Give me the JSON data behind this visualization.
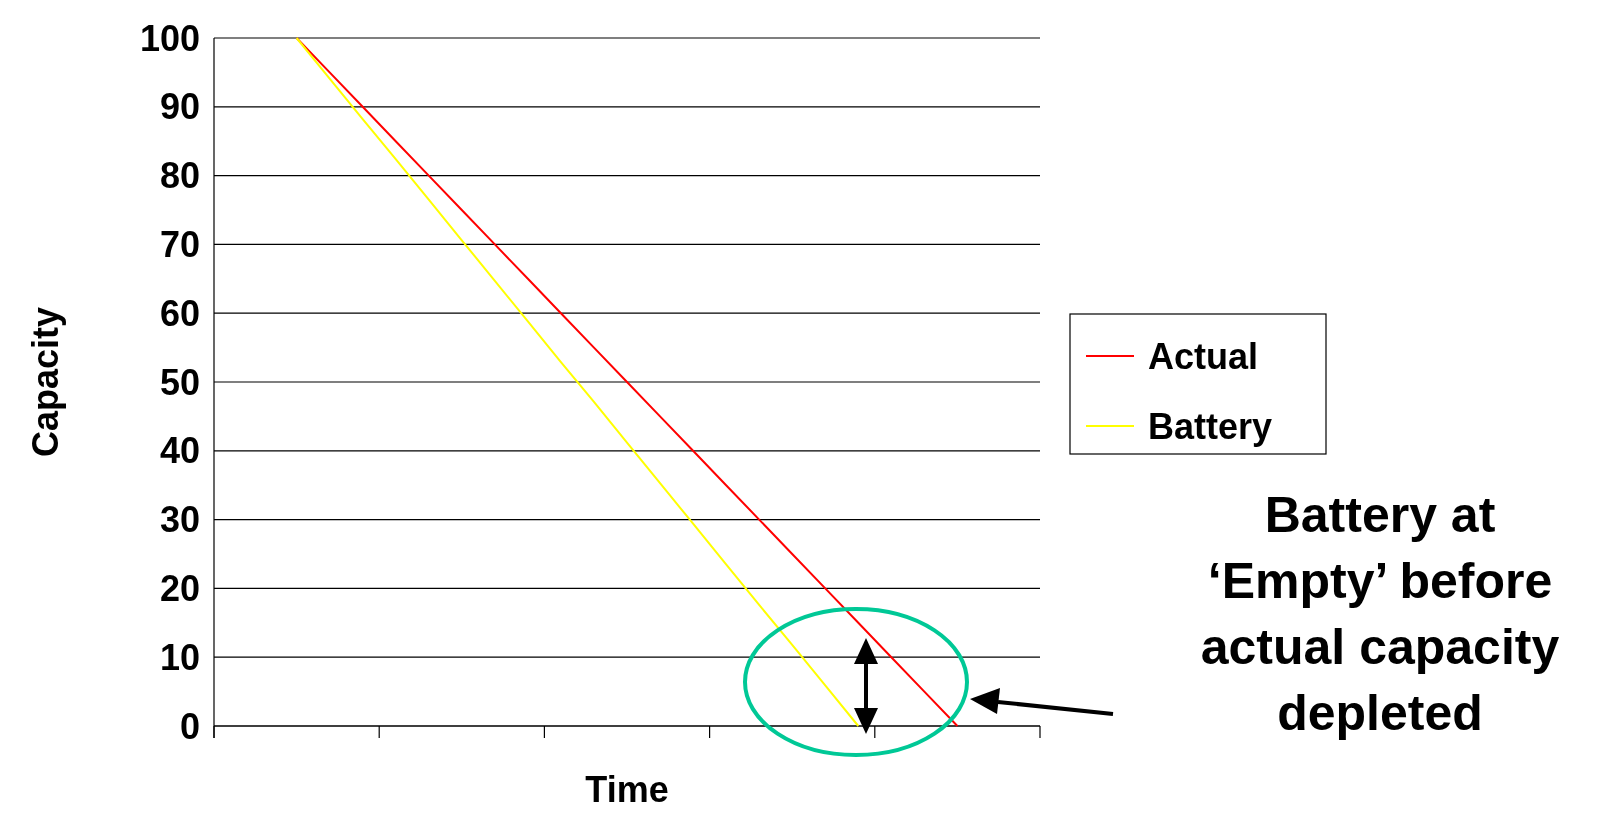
{
  "chart_data": {
    "type": "line",
    "xlabel": "Time",
    "ylabel": "Capacity",
    "categories": [
      null,
      null,
      null,
      null,
      null,
      null,
      null,
      null,
      null,
      null,
      null,
      null,
      null,
      null,
      null,
      null,
      null,
      null,
      null,
      null,
      null,
      null,
      null,
      null,
      null
    ],
    "series": [
      {
        "name": "Actual",
        "color": "#ff0000",
        "values": [
          null,
          null,
          100,
          95,
          90,
          85,
          80,
          75,
          70,
          65,
          60,
          55,
          50,
          45,
          40,
          35,
          30,
          25,
          20,
          15,
          10,
          5,
          0,
          null,
          null
        ]
      },
      {
        "name": "Battery",
        "color": "#ffff00",
        "values": [
          null,
          null,
          100,
          94.1,
          88.2,
          82.4,
          76.5,
          70.6,
          64.7,
          58.8,
          52.9,
          47.1,
          41.2,
          35.3,
          29.4,
          23.5,
          17.6,
          11.8,
          5.9,
          0,
          null,
          null,
          null,
          null,
          null
        ]
      }
    ],
    "ylim": [
      0,
      100
    ],
    "yticks": [
      0,
      10,
      20,
      30,
      40,
      50,
      60,
      70,
      80,
      90,
      100
    ],
    "grid": "y",
    "legend": "right",
    "marker": "none",
    "line_style": "solid",
    "annotations": [
      "Battery at ‘Empty’ before actual capacity depleted"
    ]
  }
}
